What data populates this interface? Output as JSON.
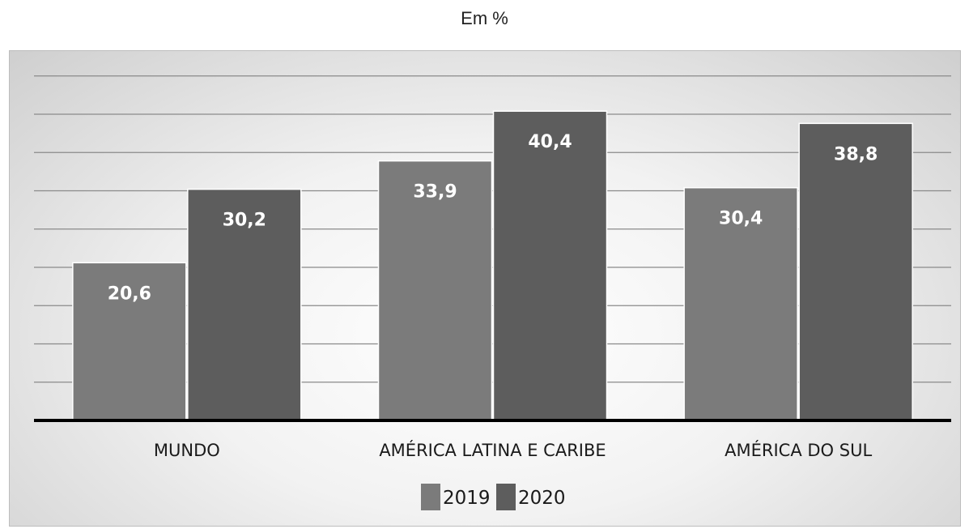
{
  "chart_data": {
    "type": "bar",
    "title": "Em %",
    "categories": [
      "MUNDO",
      "AMÉRICA LATINA E CARIBE",
      "AMÉRICA DO SUL"
    ],
    "series": [
      {
        "name": "2019",
        "values": [
          20.6,
          33.9,
          30.4
        ],
        "labels": [
          "20,6",
          "33,9",
          "30,4"
        ],
        "color": "#7b7b7b"
      },
      {
        "name": "2020",
        "values": [
          30.2,
          40.4,
          38.8
        ],
        "labels": [
          "30,2",
          "40,4",
          "38,8"
        ],
        "color": "#5d5d5d"
      }
    ],
    "ylim": [
      0,
      45
    ],
    "grid": true,
    "legend": "bottom-center",
    "xlabel": "",
    "ylabel": ""
  }
}
